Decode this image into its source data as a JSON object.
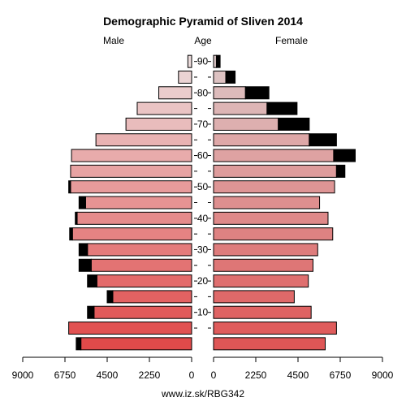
{
  "chart_data": {
    "type": "bar",
    "title": "Demographic Pyramid of Sliven 2014",
    "left_label": "Male",
    "center_label": "Age",
    "right_label": "Female",
    "footer": "www.iz.sk/RBG342",
    "xlim": [
      0,
      9000
    ],
    "x_ticks": [
      0,
      2250,
      4500,
      6750,
      9000
    ],
    "age_ticks": [
      10,
      20,
      30,
      40,
      50,
      60,
      70,
      80,
      90
    ],
    "age_groups": [
      "0-4",
      "5-9",
      "10-14",
      "15-19",
      "20-24",
      "25-29",
      "30-34",
      "35-39",
      "40-44",
      "45-49",
      "50-54",
      "55-59",
      "60-64",
      "65-69",
      "70-74",
      "75-79",
      "80-84",
      "85-89",
      "90+"
    ],
    "series": [
      {
        "name": "Male",
        "values": [
          5900,
          6550,
          5200,
          4200,
          5050,
          5350,
          5550,
          6350,
          6100,
          5650,
          6450,
          6450,
          6400,
          5100,
          3500,
          2900,
          1750,
          700,
          200
        ],
        "excess": [
          250,
          0,
          350,
          300,
          500,
          650,
          450,
          150,
          100,
          350,
          100,
          0,
          0,
          0,
          0,
          0,
          0,
          0,
          0
        ]
      },
      {
        "name": "Female",
        "values": [
          5950,
          6550,
          5200,
          4300,
          5050,
          5300,
          5550,
          6350,
          6100,
          5650,
          6450,
          6550,
          6400,
          5100,
          3450,
          2850,
          1700,
          650,
          150
        ],
        "excess": [
          0,
          0,
          0,
          0,
          0,
          0,
          0,
          0,
          0,
          0,
          0,
          450,
          1150,
          1450,
          1650,
          1600,
          1250,
          500,
          200
        ]
      }
    ],
    "colors": {
      "excess": "#000000",
      "male_young": "#e04a4a",
      "male_old": "#ecdcdc",
      "female_young": "#df5656",
      "female_old": "#ddc8c8"
    }
  }
}
